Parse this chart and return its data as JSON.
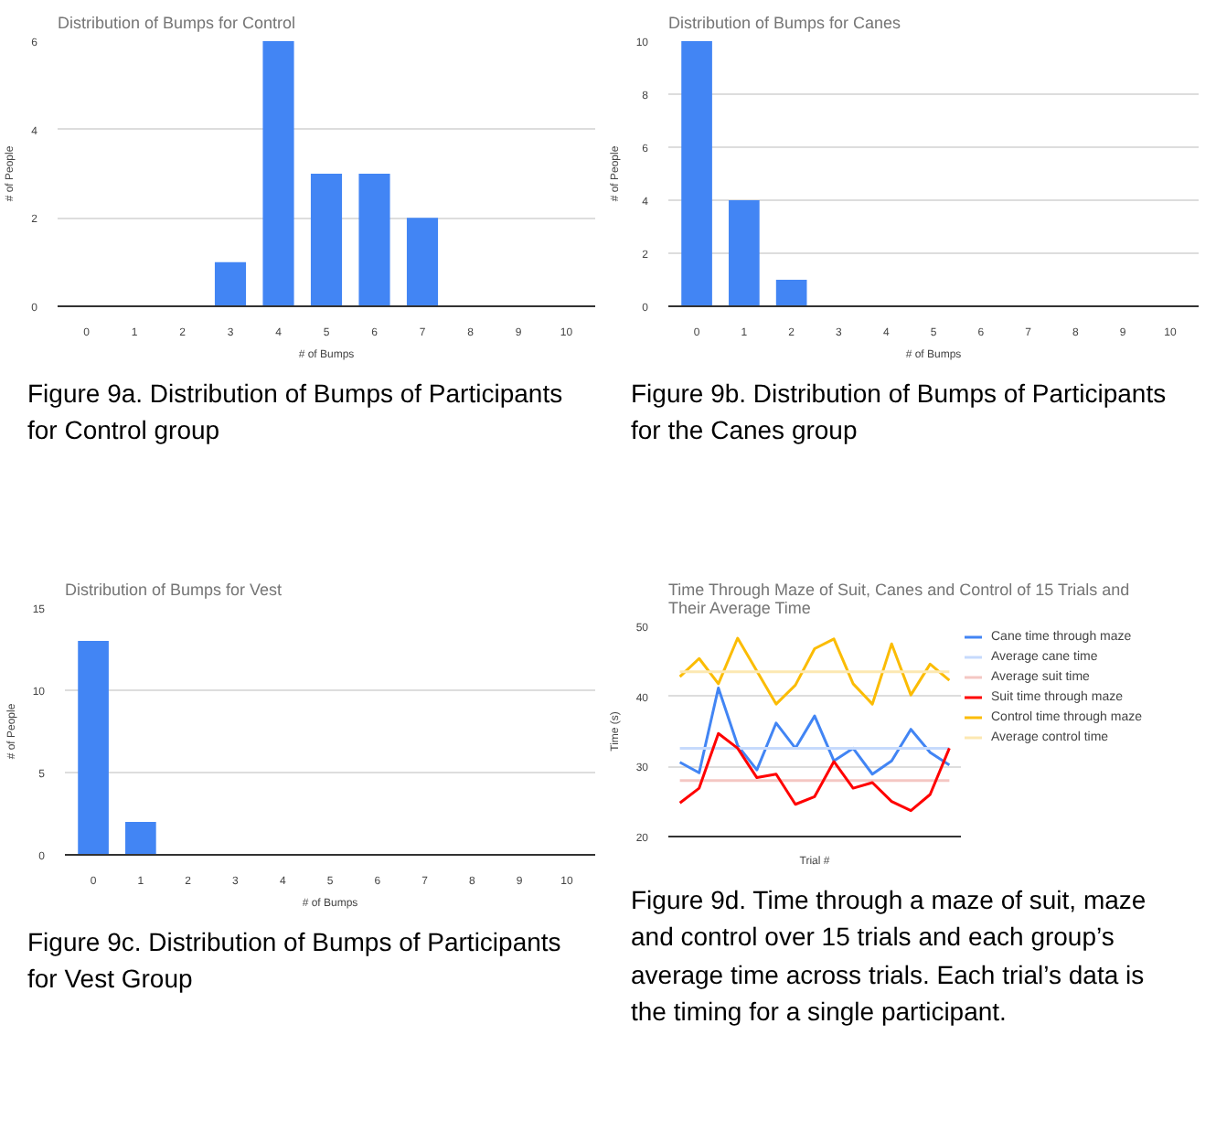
{
  "chart_data": [
    {
      "type": "bar",
      "title": "Distribution of Bumps for Control",
      "xlabel": "# of Bumps",
      "ylabel": "# of People",
      "categories": [
        "0",
        "1",
        "2",
        "3",
        "4",
        "5",
        "6",
        "7",
        "8",
        "9",
        "10"
      ],
      "values": [
        0,
        0,
        0,
        1,
        6,
        3,
        3,
        2,
        0,
        0,
        0
      ],
      "color": "#4285f4",
      "ylim": [
        0,
        6
      ],
      "yticks": [
        0,
        2,
        4,
        6
      ],
      "grid": "y",
      "annotations": [
        "Figure 9a. Distribution of Bumps of Participants for Control group"
      ]
    },
    {
      "type": "bar",
      "title": "Distribution of Bumps for Canes",
      "xlabel": "# of Bumps",
      "ylabel": "# of People",
      "categories": [
        "0",
        "1",
        "2",
        "3",
        "4",
        "5",
        "6",
        "7",
        "8",
        "9",
        "10"
      ],
      "values": [
        10,
        4,
        1,
        0,
        0,
        0,
        0,
        0,
        0,
        0,
        0
      ],
      "color": "#4285f4",
      "ylim": [
        0,
        10
      ],
      "yticks": [
        0,
        2,
        4,
        6,
        8,
        10
      ],
      "grid": "y",
      "annotations": [
        "Figure 9b. Distribution of Bumps of Participants for the Canes group"
      ]
    },
    {
      "type": "bar",
      "title": "Distribution of Bumps for Vest",
      "xlabel": "# of Bumps",
      "ylabel": "# of People",
      "categories": [
        "0",
        "1",
        "2",
        "3",
        "4",
        "5",
        "6",
        "7",
        "8",
        "9",
        "10"
      ],
      "values": [
        13,
        2,
        0,
        0,
        0,
        0,
        0,
        0,
        0,
        0,
        0
      ],
      "color": "#4285f4",
      "ylim": [
        0,
        15
      ],
      "yticks": [
        0,
        5,
        10,
        15
      ],
      "grid": "y",
      "annotations": [
        "Figure 9c. Distribution of Bumps of Participants for Vest Group"
      ]
    },
    {
      "type": "line",
      "title": "Time Through Maze of Suit, Canes and Control of 15 Trials and Their Average Time",
      "xlabel": "Trial #",
      "ylabel": "Time (s)",
      "categories": [
        null,
        null,
        null,
        null,
        null,
        null,
        null,
        null,
        null,
        null,
        null,
        null,
        null,
        null,
        null
      ],
      "ylim": [
        20,
        50
      ],
      "yticks": [
        20,
        30,
        40,
        50
      ],
      "grid": "y",
      "tick_labels": "y",
      "legend": "right",
      "series": [
        {
          "name": "Cane time through maze",
          "color": "#4285f4",
          "values": [
            30.6,
            29.1,
            41.2,
            33,
            29.5,
            36.2,
            32.6,
            37.2,
            30.8,
            32.6,
            28.9,
            30.8,
            35.3,
            32,
            30.2
          ]
        },
        {
          "name": "Average cane time",
          "color": "#c6dafc",
          "values": [
            32.6,
            32.6,
            32.6,
            32.6,
            32.6,
            32.6,
            32.6,
            32.6,
            32.6,
            32.6,
            32.6,
            32.6,
            32.6,
            32.6,
            32.6
          ]
        },
        {
          "name": "Average suit time",
          "color": "#f4c7c3",
          "values": [
            28,
            28,
            28,
            28,
            28,
            28,
            28,
            28,
            28,
            28,
            28,
            28,
            28,
            28,
            28
          ]
        },
        {
          "name": "Suit time through maze",
          "color": "#ff0000",
          "values": [
            24.8,
            26.9,
            34.7,
            32.6,
            28.4,
            28.9,
            24.6,
            25.7,
            30.7,
            26.9,
            27.7,
            25,
            23.7,
            26,
            32.6
          ]
        },
        {
          "name": "Control time through maze",
          "color": "#fbbc04",
          "values": [
            42.8,
            45.4,
            41.8,
            48.3,
            43.6,
            38.9,
            41.6,
            46.8,
            48.2,
            41.8,
            38.9,
            47.5,
            40.2,
            44.6,
            42.3
          ]
        },
        {
          "name": "Average control time",
          "color": "#fce8b2",
          "values": [
            43.5,
            43.5,
            43.5,
            43.5,
            43.5,
            43.5,
            43.5,
            43.5,
            43.5,
            43.5,
            43.5,
            43.5,
            43.5,
            43.5,
            43.5
          ]
        }
      ],
      "annotations": [
        "Figure 9d. Time through a maze of suit, maze and control over 15 trials and each group’s average time across trials. Each trial’s data is the timing for a single participant."
      ]
    }
  ]
}
